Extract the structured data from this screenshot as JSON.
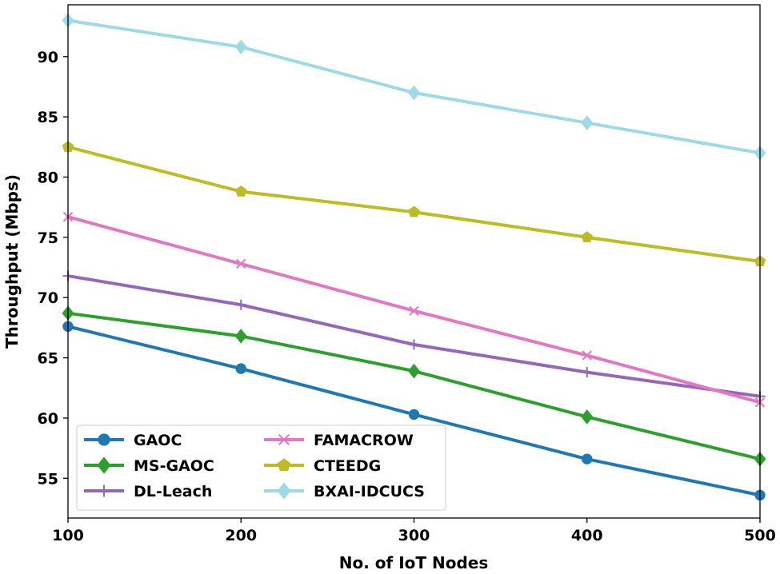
{
  "chart_data": {
    "type": "line",
    "title": "",
    "xlabel": "No. of IoT Nodes",
    "ylabel": "Throughput (Mbps)",
    "x": [
      100,
      200,
      300,
      400,
      500
    ],
    "xlim": [
      100,
      500
    ],
    "ylim": [
      51.7,
      94.3
    ],
    "xticks": [
      100,
      200,
      300,
      400,
      500
    ],
    "yticks": [
      55,
      60,
      65,
      70,
      75,
      80,
      85,
      90
    ],
    "grid": false,
    "legend_position": "lower-left",
    "series": [
      {
        "name": "GAOC",
        "color": "#1f77b4",
        "marker": "circle",
        "values": [
          67.6,
          64.1,
          60.3,
          56.6,
          53.6
        ]
      },
      {
        "name": "MS-GAOC",
        "color": "#2ca02c",
        "marker": "diamond",
        "values": [
          68.7,
          66.8,
          63.9,
          60.1,
          56.6
        ]
      },
      {
        "name": "DL-Leach",
        "color": "#9467bd",
        "marker": "plus",
        "values": [
          71.8,
          69.4,
          66.1,
          63.8,
          61.8
        ]
      },
      {
        "name": "FAMACROW",
        "color": "#e377c2",
        "marker": "x",
        "values": [
          76.7,
          72.8,
          68.9,
          65.2,
          61.3
        ]
      },
      {
        "name": "CTEEDG",
        "color": "#bcbd22",
        "marker": "pentagon",
        "values": [
          82.5,
          78.8,
          77.1,
          75.0,
          73.0
        ]
      },
      {
        "name": "BXAI-IDCUCS",
        "color": "#9edae5",
        "marker": "diamond",
        "values": [
          93.0,
          90.8,
          87.0,
          84.5,
          82.0
        ]
      }
    ]
  }
}
